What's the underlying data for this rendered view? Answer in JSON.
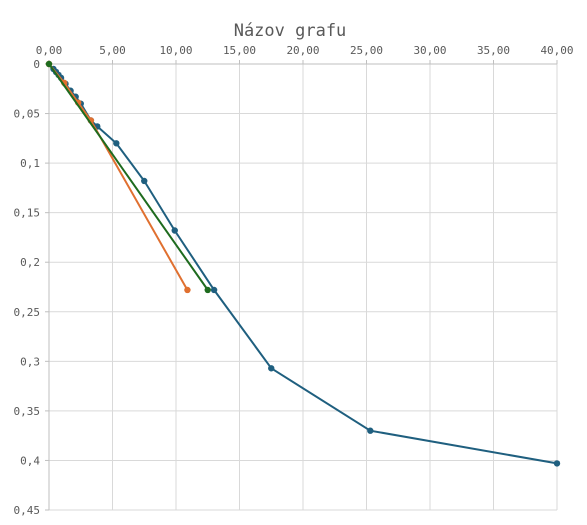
{
  "chart_data": {
    "type": "scatter",
    "title": "Názov grafu",
    "xlabel": "",
    "ylabel": "",
    "x_axis_position": "top",
    "y_axis_inverted": true,
    "xlim": [
      0,
      40
    ],
    "ylim": [
      0,
      0.45
    ],
    "x_ticks": [
      0,
      5,
      10,
      15,
      20,
      25,
      30,
      35,
      40
    ],
    "y_ticks": [
      0,
      0.05,
      0.1,
      0.15,
      0.2,
      0.25,
      0.3,
      0.35,
      0.4,
      0.45
    ],
    "x_tick_labels": [
      "0,00",
      "5,00",
      "10,00",
      "15,00",
      "20,00",
      "25,00",
      "30,00",
      "35,00",
      "40,00"
    ],
    "y_tick_labels": [
      "0",
      "0,05",
      "0,1",
      "0,15",
      "0,2",
      "0,25",
      "0,3",
      "0,35",
      "0,4",
      "0,45"
    ],
    "grid": true,
    "legend": "none",
    "series": [
      {
        "color": "#1f5f7f",
        "points": [
          [
            0.35,
            0.005
          ],
          [
            0.55,
            0.008
          ],
          [
            0.75,
            0.011
          ],
          [
            0.95,
            0.014
          ],
          [
            1.3,
            0.02
          ],
          [
            1.7,
            0.027
          ],
          [
            2.1,
            0.033
          ],
          [
            2.5,
            0.04
          ],
          [
            3.3,
            0.057
          ],
          [
            3.8,
            0.063
          ],
          [
            5.3,
            0.08
          ],
          [
            7.5,
            0.118
          ],
          [
            9.9,
            0.168
          ],
          [
            13.0,
            0.228
          ],
          [
            17.5,
            0.307
          ],
          [
            25.3,
            0.37
          ],
          [
            40.0,
            0.403
          ]
        ]
      },
      {
        "color": "#e07030",
        "points": [
          [
            0.0,
            0.0
          ],
          [
            1.2,
            0.019
          ],
          [
            2.3,
            0.039
          ],
          [
            3.3,
            0.057
          ],
          [
            10.9,
            0.228
          ]
        ]
      },
      {
        "color": "#1e6b1e",
        "points": [
          [
            0.0,
            0.0
          ],
          [
            12.5,
            0.228
          ]
        ]
      }
    ]
  }
}
